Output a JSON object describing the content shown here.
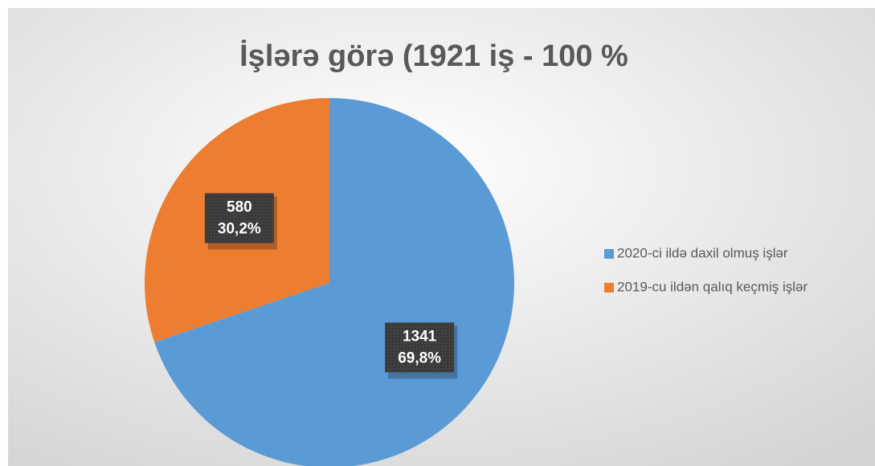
{
  "chart_data": {
    "type": "pie",
    "title": "İşlərə görə (1921 iş - 100 %",
    "categories": [
      "2020-ci ildə daxil olmuş işlər",
      "2019-cu ildən qalıq keçmiş işlər"
    ],
    "values": [
      1341,
      580
    ],
    "percent_labels": [
      "69,8%",
      "30,2%"
    ],
    "colors": [
      "#5b9bd5",
      "#ed7d31"
    ],
    "legend": "right"
  }
}
